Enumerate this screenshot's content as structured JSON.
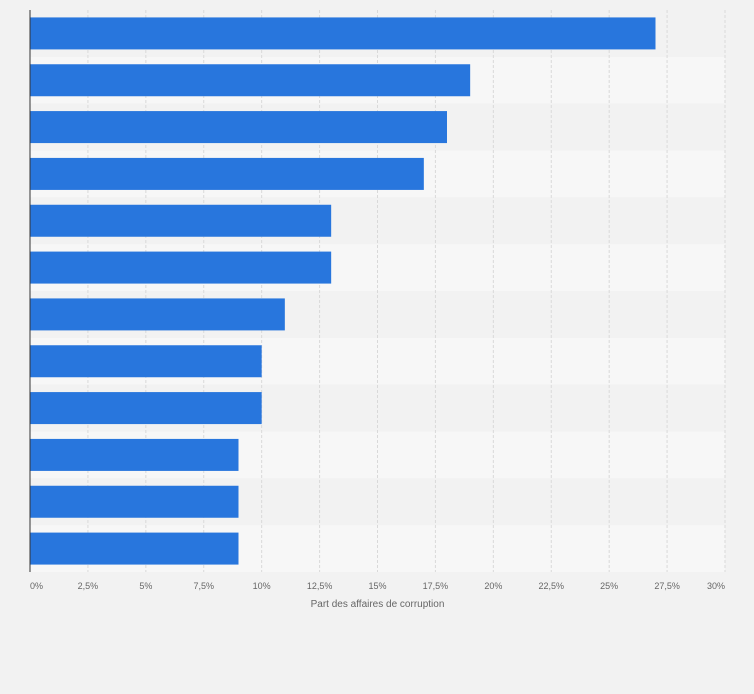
{
  "chart_data": {
    "type": "bar",
    "orientation": "horizontal",
    "xlabel": "Part des affaires de corruption",
    "x_tick_labels": [
      "0%",
      "2,5%",
      "5%",
      "7,5%",
      "10%",
      "12,5%",
      "15%",
      "17,5%",
      "20%",
      "22,5%",
      "25%",
      "27,5%",
      "30%"
    ],
    "xlim": [
      0,
      30
    ],
    "values": [
      27,
      19,
      18,
      17,
      13,
      13,
      11,
      10,
      10,
      9,
      9,
      9
    ],
    "grid": true,
    "colors": {
      "bar": "#2876dd",
      "band_light": "#f7f7f7",
      "band_dark": "#f2f2f2",
      "grid": "#d9d9d9",
      "axis": "#333333",
      "text": "#666666"
    }
  }
}
